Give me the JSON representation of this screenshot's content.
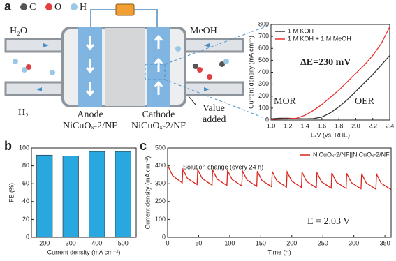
{
  "panels": [
    "a",
    "b",
    "c"
  ],
  "diagram": {
    "atoms": [
      "C",
      "O",
      "H"
    ],
    "inlet_left": "H₂O",
    "outlet_left": "H₂",
    "inlet_right": "MeOH",
    "anode": "Anode",
    "anode_material": "NiCuOₓ-2/NF",
    "cathode": "Cathode",
    "cathode_material": "NiCuOₓ-2/NF",
    "product": [
      "Value",
      "added"
    ]
  },
  "chart_data": [
    {
      "type": "line",
      "xlabel": "E/V (vs. RHE)",
      "ylabel": "Current density (mA cm⁻²)",
      "xlim": [
        1.0,
        2.4
      ],
      "xticks": [
        {
          "value": 1,
          "label": "1.0"
        },
        1.2,
        1.4,
        1.6,
        1.8,
        {
          "value": 2,
          "label": "2.0"
        },
        2.2,
        2.4
      ],
      "ylim": [
        0,
        800
      ],
      "yticks": [
        0,
        100,
        200,
        300,
        400,
        500,
        600,
        700,
        800
      ],
      "x": [
        1.0,
        1.1,
        1.2,
        1.3,
        1.4,
        1.5,
        1.6,
        1.7,
        1.8,
        1.9,
        2.0,
        2.1,
        2.2,
        2.3,
        2.4
      ],
      "series": [
        {
          "name": "1 M KOH",
          "color": "#333333",
          "values": [
            10,
            15,
            15,
            12,
            10,
            12,
            25,
            60,
            110,
            170,
            240,
            310,
            380,
            460,
            540
          ]
        },
        {
          "name": "1 M KOH + 1 M MeOH",
          "color": "#e8312f",
          "values": [
            5,
            8,
            10,
            15,
            40,
            80,
            130,
            190,
            250,
            320,
            390,
            460,
            540,
            640,
            780
          ]
        }
      ],
      "annotations": [
        "ΔE=230 mV",
        "MOR",
        "OER"
      ],
      "legend": "upper left"
    },
    {
      "type": "bar",
      "xlabel": "Current density (mA cm⁻²)",
      "ylabel": "FE (%)",
      "categories": [
        "200",
        "300",
        "400",
        "500"
      ],
      "values": [
        92,
        91,
        96,
        96
      ],
      "color": "#29a8e0",
      "ylim": [
        0,
        100
      ],
      "yticks": [
        0,
        20,
        40,
        60,
        80,
        100
      ]
    },
    {
      "type": "line",
      "xlabel": "Time (h)",
      "ylabel": "Current density (mA cm⁻²)",
      "xlim": [
        0,
        360
      ],
      "xticks": [
        0,
        50,
        100,
        150,
        200,
        250,
        300,
        350
      ],
      "ylim": [
        0,
        500
      ],
      "yticks": [
        0,
        100,
        200,
        300,
        400,
        500
      ],
      "x": [
        0.5,
        8,
        23.5,
        24.5,
        32,
        47.5,
        48.5,
        56,
        71.5,
        72.5,
        80,
        95.5,
        96.5,
        104,
        119.5,
        120.5,
        128,
        143.5,
        144.5,
        152,
        167.5,
        168.5,
        176,
        191.5,
        192.5,
        200,
        215.5,
        216.5,
        224,
        239.5,
        240.5,
        248,
        263.5,
        264.5,
        272,
        287.5,
        288.5,
        296,
        311.5,
        312.5,
        320,
        335.5,
        336.5,
        344,
        359.5
      ],
      "series": [
        {
          "name": "NiCuOₓ-2/NF||NiCuOₓ-2/NF",
          "color": "#d9261c",
          "values": [
            400,
            345,
            305,
            380,
            330,
            295,
            378,
            328,
            292,
            376,
            325,
            290,
            374,
            323,
            288,
            372,
            320,
            285,
            370,
            318,
            283,
            368,
            316,
            281,
            366,
            314,
            279,
            364,
            312,
            277,
            362,
            310,
            275,
            360,
            308,
            273,
            358,
            306,
            271,
            356,
            304,
            269,
            354,
            302,
            268
          ]
        }
      ],
      "annotations": [
        "Solution change (every 24 h)",
        "E = 2.03 V"
      ],
      "legend": "upper right"
    }
  ]
}
